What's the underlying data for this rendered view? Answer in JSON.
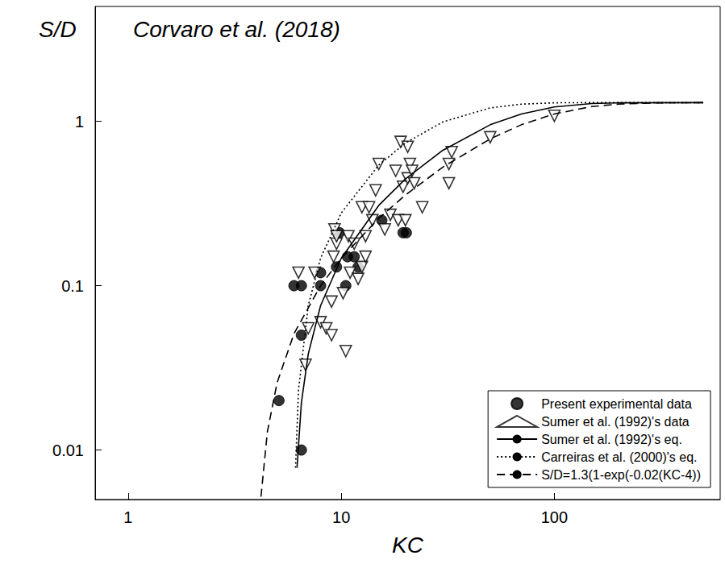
{
  "chart_data": {
    "type": "scatter",
    "title": "Corvaro et al. (2018)",
    "xlabel": "KC",
    "ylabel": "S/D",
    "xlim": [
      0.7,
      600
    ],
    "ylim": [
      0.005,
      5
    ],
    "xticks": [
      1,
      10,
      100
    ],
    "yticks": [
      0.01,
      0.1,
      1
    ],
    "log": true,
    "grid": false,
    "legend": "lower right",
    "series": [
      {
        "name": "Present experimental data",
        "type": "scatter",
        "marker": "circle",
        "color": "#000000",
        "x": [
          5.1,
          6.0,
          6.5,
          6.5,
          6.5,
          8,
          8,
          9.5,
          9.8,
          10.5,
          10.7,
          11.5,
          12,
          15.5,
          19.5,
          20.2
        ],
        "values": [
          0.02,
          0.1,
          0.1,
          0.05,
          0.01,
          0.12,
          0.1,
          0.13,
          0.21,
          0.1,
          0.15,
          0.15,
          0.13,
          0.25,
          0.21,
          0.21
        ]
      },
      {
        "name": "Sumer et al. (1992)'s data",
        "type": "scatter",
        "marker": "triangle_down",
        "color": "#000000",
        "x": [
          6.3,
          6.8,
          7,
          7.5,
          8,
          8.5,
          9,
          9,
          9.2,
          9.3,
          9.5,
          9.5,
          10.2,
          10.5,
          10.8,
          11,
          11.5,
          12,
          12.5,
          12.5,
          13,
          13,
          13.5,
          14,
          14.5,
          15,
          16,
          17,
          18,
          18.5,
          19,
          19.5,
          20,
          20.5,
          20.5,
          21,
          21.5,
          22,
          24,
          32,
          32,
          33,
          50,
          100
        ],
        "values": [
          0.12,
          0.033,
          0.055,
          0.12,
          0.06,
          0.055,
          0.05,
          0.08,
          0.15,
          0.22,
          0.18,
          0.2,
          0.09,
          0.04,
          0.2,
          0.12,
          0.18,
          0.11,
          0.13,
          0.3,
          0.2,
          0.15,
          0.3,
          0.25,
          0.38,
          0.55,
          0.22,
          0.27,
          0.5,
          0.25,
          0.75,
          0.4,
          0.25,
          0.45,
          0.7,
          0.55,
          0.5,
          0.42,
          0.3,
          0.42,
          0.55,
          0.65,
          0.8,
          1.08
        ]
      },
      {
        "name": "Sumer et al. (1992)'s eq.",
        "type": "line",
        "line_style": "solid",
        "color": "#000000",
        "x": [
          6.2,
          6.5,
          7,
          8,
          10,
          15,
          20,
          30,
          50,
          70,
          100,
          150,
          200,
          500
        ],
        "values": [
          0.0078,
          0.0194,
          0.0384,
          0.0757,
          0.147,
          0.308,
          0.446,
          0.667,
          0.953,
          1.109,
          1.222,
          1.283,
          1.296,
          1.3
        ]
      },
      {
        "name": "Carreiras et al. (2000)'s eq.",
        "type": "line",
        "line_style": "dotted",
        "color": "#000000",
        "x": [
          6.1,
          6.3,
          7,
          8,
          10,
          15,
          20,
          30,
          50,
          70,
          100,
          150,
          500
        ],
        "values": [
          0.0078,
          0.0232,
          0.0757,
          0.147,
          0.277,
          0.542,
          0.738,
          0.992,
          1.207,
          1.272,
          1.296,
          1.3,
          1.3
        ]
      },
      {
        "name": "S/D=1.3(1-exp(-0.02(KC-4))",
        "type": "line",
        "line_style": "dashed",
        "color": "#000000",
        "x": [
          4.2,
          4.5,
          5,
          6,
          8,
          10,
          15,
          20,
          30,
          50,
          70,
          100,
          150,
          200,
          300,
          500
        ],
        "values": [
          0.0052,
          0.0129,
          0.0257,
          0.051,
          0.1,
          0.147,
          0.257,
          0.356,
          0.527,
          0.782,
          0.953,
          1.109,
          1.23,
          1.274,
          1.296,
          1.3
        ]
      }
    ]
  }
}
